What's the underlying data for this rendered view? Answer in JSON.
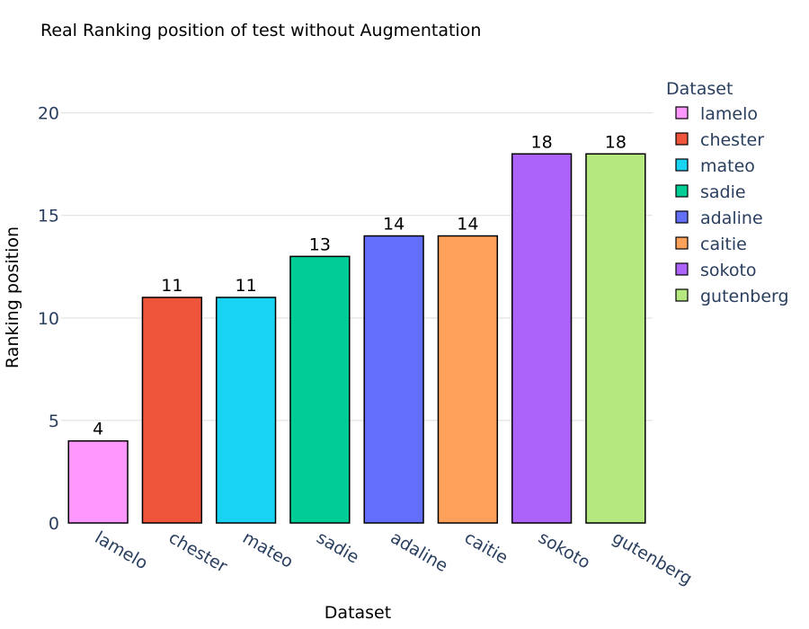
{
  "chart_data": {
    "type": "bar",
    "title": "Real Ranking position of test without Augmentation",
    "xlabel": "Dataset",
    "ylabel": "Ranking position",
    "categories": [
      "lamelo",
      "chester",
      "mateo",
      "sadie",
      "adaline",
      "caitie",
      "sokoto",
      "gutenberg"
    ],
    "values": [
      4,
      11,
      11,
      13,
      14,
      14,
      18,
      18
    ],
    "data_labels": [
      "4",
      "11",
      "11",
      "13",
      "14",
      "14",
      "18",
      "18"
    ],
    "colors": [
      "#ff97ff",
      "#ef553b",
      "#19d3f3",
      "#00cc96",
      "#636efa",
      "#ffa15a",
      "#ab63fa",
      "#b6e880"
    ],
    "ylim": [
      0,
      22
    ],
    "yticks": [
      0,
      5,
      10,
      15,
      20
    ],
    "ytick_labels": [
      "0",
      "5",
      "10",
      "15",
      "20"
    ],
    "grid": true,
    "legend": {
      "title": "Dataset",
      "placement": "right",
      "entries": [
        "lamelo",
        "chester",
        "mateo",
        "sadie",
        "adaline",
        "caitie",
        "sokoto",
        "gutenberg"
      ]
    }
  }
}
